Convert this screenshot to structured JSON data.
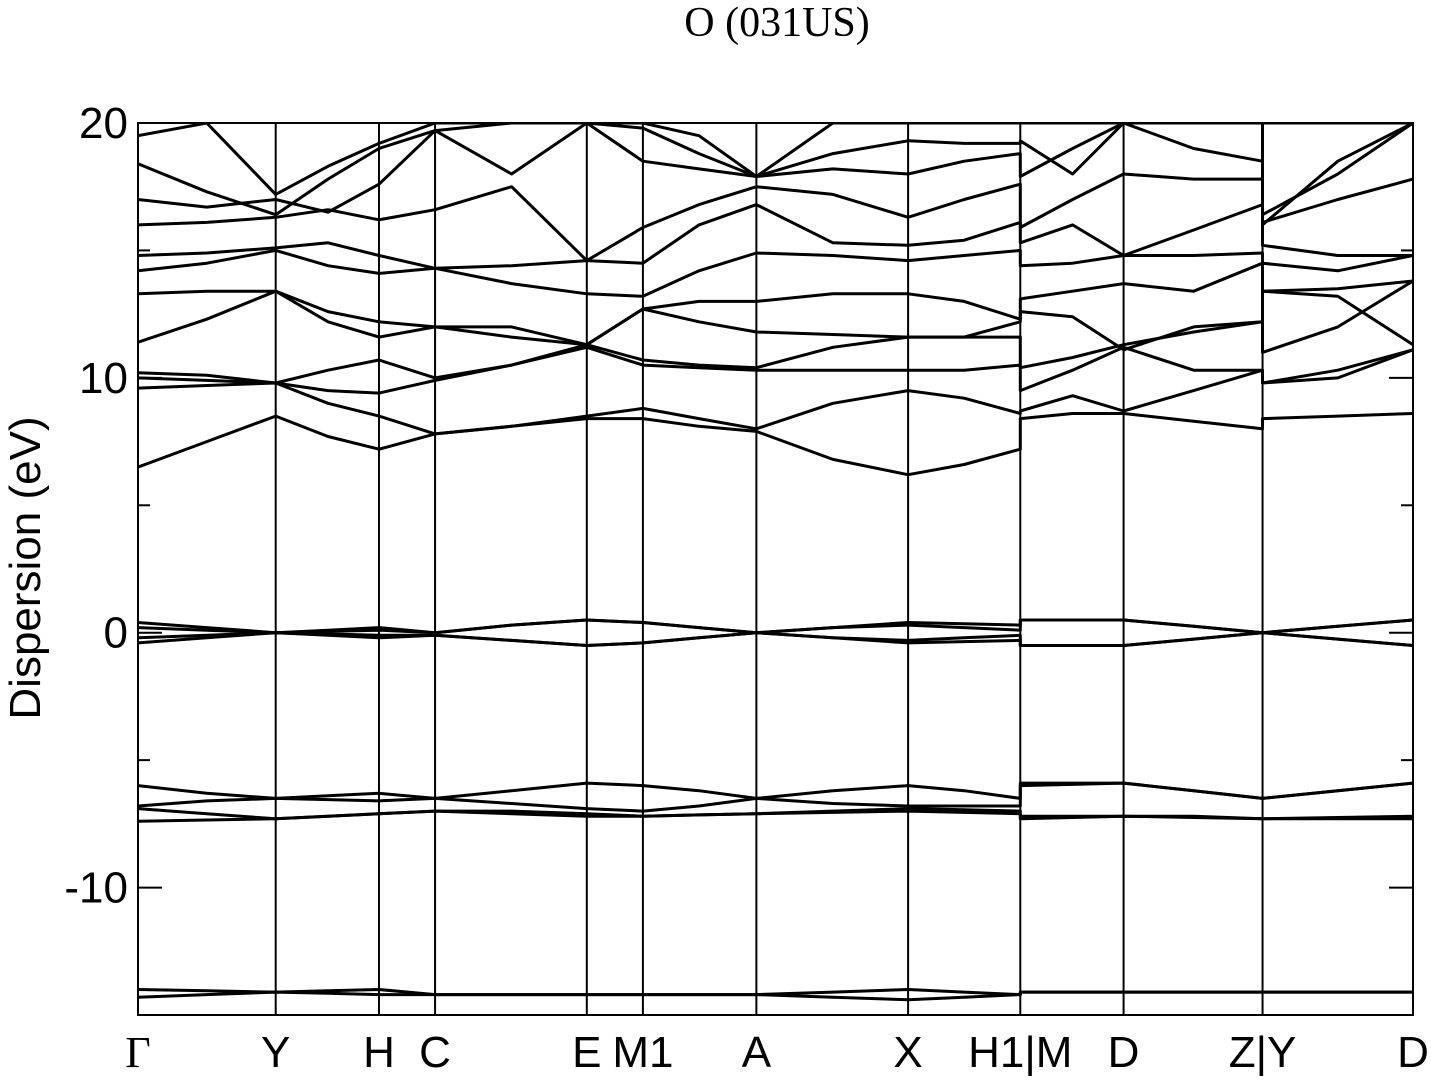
{
  "chart_data": {
    "type": "line",
    "title": "O (031US)",
    "y_label": "Dispersion (eV)",
    "color": "#000000",
    "ylim": [
      -15,
      20
    ],
    "yticks": [
      -10,
      0,
      10,
      20
    ],
    "yminor": [
      -5,
      5,
      15
    ],
    "xlim": [
      0,
      1
    ],
    "xticks": [
      {
        "value": 0,
        "label": "Γ"
      },
      {
        "value": 0.108,
        "label": "Y"
      },
      {
        "value": 0.189,
        "label": "H"
      },
      {
        "value": 0.233,
        "label": "C"
      },
      {
        "value": 0.352,
        "label": "E"
      },
      {
        "value": 0.396,
        "label": "M1"
      },
      {
        "value": 0.485,
        "label": "A"
      },
      {
        "value": 0.604,
        "label": "X"
      },
      {
        "value": 0.692,
        "label": "H1|M"
      },
      {
        "value": 0.773,
        "label": "D"
      },
      {
        "value": 0.882,
        "label": "Z|Y"
      },
      {
        "value": 1,
        "label": "D"
      }
    ],
    "x": [
      0,
      0.054,
      0.108,
      0.149,
      0.189,
      0.233,
      0.293,
      0.352,
      0.396,
      0.44,
      0.485,
      0.545,
      0.604,
      0.648,
      0.692,
      0.692,
      0.733,
      0.773,
      0.828,
      0.882,
      0.882,
      0.941,
      1
    ],
    "bands": [
      [
        -14.3,
        -14.2,
        -14.1,
        -14.15,
        -14.2,
        -14.2,
        -14.2,
        -14.2,
        -14.2,
        -14.2,
        -14.2,
        -14.3,
        -14.4,
        -14.3,
        -14.2,
        -14.1,
        -14.1,
        -14.1,
        -14.1,
        -14.1,
        -14.1,
        -14.1,
        -14.1
      ],
      [
        -14.0,
        -14.05,
        -14.1,
        -14.05,
        -14.0,
        -14.2,
        -14.2,
        -14.2,
        -14.2,
        -14.2,
        -14.2,
        -14.1,
        -14.0,
        -14.1,
        -14.2,
        -14.1,
        -14.1,
        -14.1,
        -14.1,
        -14.1,
        -14.1,
        -14.1,
        -14.1
      ],
      [
        -7.4,
        -7.35,
        -7.3,
        -7.2,
        -7.1,
        -7.0,
        -7.1,
        -7.2,
        -7.2,
        -7.15,
        -7.1,
        -7.05,
        -7.0,
        -7.05,
        -7.1,
        -7.3,
        -7.25,
        -7.2,
        -7.25,
        -7.3,
        -7.3,
        -7.3,
        -7.3
      ],
      [
        -6.9,
        -7.1,
        -7.3,
        -7.2,
        -7.1,
        -7.0,
        -7.0,
        -7.1,
        -7.2,
        -7.15,
        -7.1,
        -7.0,
        -6.9,
        -6.95,
        -7.0,
        -7.2,
        -7.2,
        -7.2,
        -7.2,
        -7.3,
        -7.3,
        -7.25,
        -7.2
      ],
      [
        -6.8,
        -6.6,
        -6.5,
        -6.55,
        -6.6,
        -6.5,
        -6.7,
        -6.9,
        -7.0,
        -6.8,
        -6.5,
        -6.7,
        -6.8,
        -6.8,
        -6.8,
        -6.0,
        -5.95,
        -5.9,
        -6.2,
        -6.5,
        -6.5,
        -6.2,
        -5.9
      ],
      [
        -6.0,
        -6.3,
        -6.5,
        -6.4,
        -6.3,
        -6.5,
        -6.2,
        -5.9,
        -6.0,
        -6.2,
        -6.5,
        -6.2,
        -6.0,
        -6.2,
        -6.5,
        -5.9,
        -5.9,
        -5.9,
        -6.2,
        -6.5,
        -6.5,
        -6.2,
        -5.9
      ],
      [
        -0.4,
        -0.2,
        0,
        -0.1,
        -0.2,
        -0.1,
        -0.3,
        -0.5,
        -0.4,
        -0.2,
        0,
        -0.2,
        -0.4,
        -0.35,
        -0.3,
        -0.5,
        -0.5,
        -0.5,
        -0.25,
        0,
        0,
        -0.25,
        -0.5
      ],
      [
        -0.2,
        -0.1,
        0,
        -0.05,
        -0.1,
        -0.1,
        -0.3,
        -0.5,
        -0.4,
        -0.2,
        0,
        -0.2,
        -0.3,
        -0.2,
        -0.1,
        -0.5,
        -0.5,
        -0.5,
        -0.25,
        0,
        0,
        -0.25,
        -0.5
      ],
      [
        0.2,
        0.1,
        0,
        0.05,
        0.1,
        0,
        0.3,
        0.5,
        0.4,
        0.2,
        0,
        0.2,
        0.3,
        0.2,
        0.1,
        0.5,
        0.5,
        0.5,
        0.25,
        0,
        0,
        0.25,
        0.5
      ],
      [
        0.4,
        0.2,
        0,
        0.1,
        0.2,
        0,
        0.3,
        0.5,
        0.4,
        0.2,
        0,
        0.2,
        0.4,
        0.35,
        0.3,
        0.5,
        0.5,
        0.5,
        0.25,
        0,
        0,
        0.25,
        0.5
      ],
      [
        6.5,
        7.5,
        8.5,
        7.7,
        7.2,
        7.8,
        8.1,
        8.4,
        8.4,
        8.1,
        7.9,
        6.8,
        6.2,
        6.6,
        7.2,
        8.4,
        8.6,
        8.6,
        8.3,
        8.0,
        8.4,
        8.5,
        8.6
      ],
      [
        9.6,
        9.7,
        9.8,
        9.0,
        8.5,
        7.8,
        8.1,
        8.5,
        8.8,
        8.4,
        8.0,
        9.0,
        9.5,
        9.2,
        8.6,
        8.7,
        9.3,
        8.7,
        9.5,
        10.3,
        9.8,
        10.3,
        11.1
      ],
      [
        10.0,
        9.9,
        9.8,
        9.5,
        9.4,
        9.9,
        10.5,
        11.2,
        10.5,
        10.4,
        10.3,
        10.3,
        10.3,
        10.3,
        10.5,
        9.5,
        10.3,
        11.2,
        10.3,
        10.3,
        9.8,
        10.0,
        11.1
      ],
      [
        10.2,
        10.1,
        9.8,
        10.3,
        10.7,
        10.0,
        10.5,
        11.3,
        10.7,
        10.5,
        10.4,
        11.2,
        11.6,
        11.6,
        11.6,
        10.4,
        10.8,
        11.3,
        11.8,
        12.2,
        11.0,
        12.0,
        13.8
      ],
      [
        11.4,
        12.3,
        13.4,
        12.2,
        11.6,
        12.0,
        11.6,
        11.3,
        12.7,
        12.2,
        11.8,
        11.7,
        11.6,
        11.6,
        12.2,
        12.6,
        12.4,
        11.1,
        12.0,
        12.2,
        13.4,
        13.2,
        11.3
      ],
      [
        13.3,
        13.4,
        13.4,
        12.6,
        12.2,
        12.0,
        12.0,
        11.3,
        12.7,
        13.0,
        13.0,
        13.3,
        13.3,
        13.0,
        12.3,
        13.1,
        13.4,
        13.7,
        13.4,
        14.5,
        13.4,
        13.5,
        13.8
      ],
      [
        14.2,
        14.5,
        15.0,
        14.4,
        14.1,
        14.3,
        13.7,
        13.3,
        13.2,
        14.2,
        14.9,
        14.8,
        14.6,
        14.8,
        15.0,
        14.4,
        14.5,
        14.8,
        14.8,
        14.9,
        14.5,
        14.2,
        14.8
      ],
      [
        14.8,
        14.9,
        15.1,
        15.3,
        14.8,
        14.3,
        14.4,
        14.6,
        14.5,
        16.0,
        16.8,
        15.3,
        15.2,
        15.4,
        16.1,
        15.3,
        16.0,
        14.8,
        15.8,
        16.8,
        15.2,
        14.8,
        14.8
      ],
      [
        16.0,
        16.1,
        16.3,
        16.6,
        16.2,
        16.6,
        17.5,
        14.6,
        15.9,
        16.8,
        17.5,
        17.2,
        16.3,
        17.0,
        17.6,
        15.9,
        17.0,
        18.0,
        17.8,
        17.8,
        16.1,
        17.0,
        17.8
      ],
      [
        17.0,
        16.7,
        17.0,
        16.5,
        17.6,
        19.7,
        18.0,
        20.0,
        18.5,
        18.2,
        17.9,
        18.2,
        18.0,
        18.5,
        18.8,
        17.9,
        19.0,
        20.0,
        19.0,
        18.5,
        16.4,
        18.0,
        20.0
      ],
      [
        18.4,
        17.3,
        16.4,
        17.8,
        19.0,
        19.7,
        20.0,
        20.0,
        19.8,
        18.8,
        17.9,
        18.8,
        19.3,
        19.2,
        19.2,
        19.3,
        18.0,
        20.0,
        20.0,
        20.0,
        16.0,
        18.5,
        20.0
      ],
      [
        19.5,
        20.0,
        17.2,
        18.3,
        19.2,
        20.0,
        20.0,
        20.0,
        20.0,
        19.5,
        17.9,
        20.0,
        20.0,
        20.0,
        20.0,
        20.0,
        20.0,
        20.0,
        20.0,
        20.0,
        20.0,
        20.0,
        20.0
      ]
    ]
  }
}
